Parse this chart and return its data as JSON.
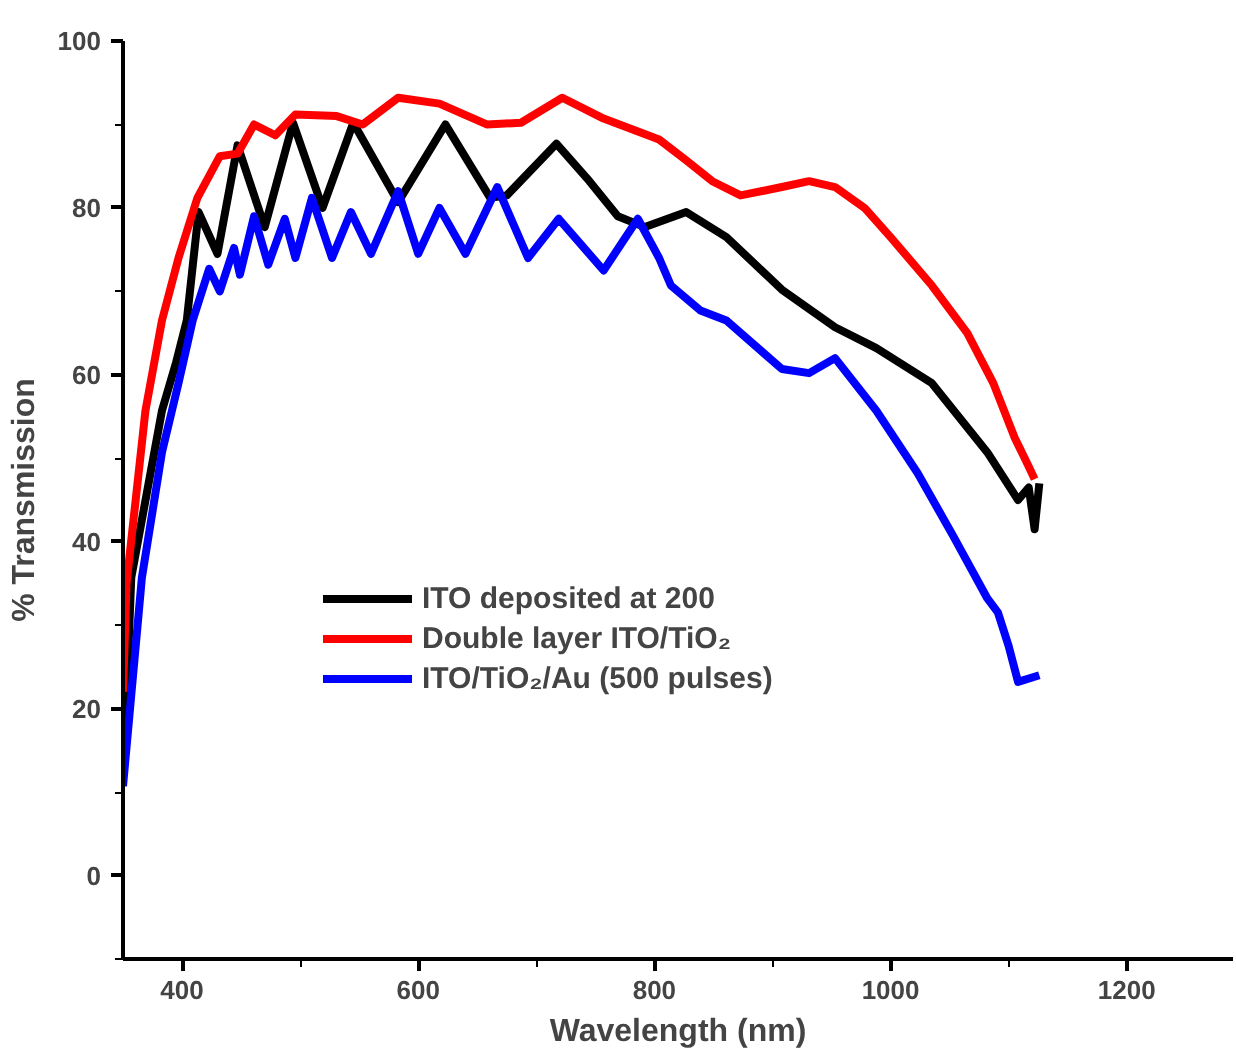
{
  "chart_data": {
    "type": "line",
    "xlabel": "Wavelength (nm)",
    "ylabel": "% Transmission",
    "xlim": [
      350,
      1290
    ],
    "ylim": [
      -10,
      100
    ],
    "xticks": [
      400,
      600,
      800,
      1000,
      1200
    ],
    "yticks": [
      0,
      20,
      40,
      60,
      80,
      100
    ],
    "grid": false,
    "legend": "center",
    "marker": "none",
    "line_style": "solid",
    "series": [
      {
        "name": "ITO deposited at 200",
        "color": "#000000",
        "x": [
          352,
          357,
          383,
          395,
          404,
          414,
          430,
          447,
          470,
          494,
          519,
          545,
          583,
          623,
          661,
          675,
          717,
          745,
          769,
          792,
          827,
          861,
          908,
          953,
          988,
          1035,
          1082,
          1108,
          1117,
          1122,
          1126
        ],
        "values": [
          18,
          35.7,
          55.7,
          61.5,
          66.5,
          79.5,
          74.5,
          87.5,
          77.7,
          90.2,
          80,
          90.2,
          80.7,
          90,
          81.2,
          81.5,
          87.7,
          83.2,
          79,
          77.7,
          79.5,
          76.5,
          70.2,
          65.7,
          63.2,
          59,
          50.7,
          45,
          46.5,
          41.5,
          47
        ]
      },
      {
        "name": "Double layer ITO/TiO₂",
        "color": "#ff0000",
        "x": [
          350,
          353,
          369,
          383,
          397,
          413,
          432,
          447,
          461,
          479,
          496,
          531,
          553,
          583,
          618,
          658,
          687,
          722,
          757,
          804,
          827,
          849,
          873,
          908,
          931,
          953,
          978,
          1000,
          1035,
          1065,
          1087,
          1105,
          1117,
          1122
        ],
        "values": [
          22,
          35,
          55.7,
          66.5,
          74,
          81.2,
          86.2,
          86.5,
          90,
          88.7,
          91.2,
          91,
          90,
          93.2,
          92.5,
          90,
          90.2,
          93.2,
          90.7,
          88.2,
          85.7,
          83.2,
          81.5,
          82.5,
          83.2,
          82.5,
          80,
          76.5,
          70.7,
          65,
          59,
          52.5,
          49,
          47.5
        ]
      },
      {
        "name": "ITO/TiO₂/Au (500 pulses)",
        "color": "#0000ff",
        "x": [
          350,
          366,
          383,
          397,
          409,
          423,
          432,
          444,
          449,
          461,
          473,
          487,
          496,
          510,
          527,
          543,
          560,
          583,
          600,
          618,
          640,
          667,
          693,
          719,
          757,
          786,
          804,
          814,
          839,
          861,
          908,
          931,
          953,
          988,
          1023,
          1053,
          1082,
          1091,
          1100,
          1108,
          1126
        ],
        "values": [
          10.7,
          35.7,
          50.7,
          59,
          66.5,
          72.7,
          70,
          75.2,
          72,
          79,
          73.2,
          78.7,
          74,
          81.2,
          74,
          79.5,
          74.5,
          82,
          74.5,
          80,
          74.5,
          82.5,
          74,
          78.7,
          72.5,
          78.7,
          74,
          70.7,
          67.7,
          66.5,
          60.7,
          60.2,
          62,
          55.7,
          48.2,
          40.7,
          33.2,
          31.5,
          27.5,
          23.2,
          24
        ]
      }
    ]
  }
}
